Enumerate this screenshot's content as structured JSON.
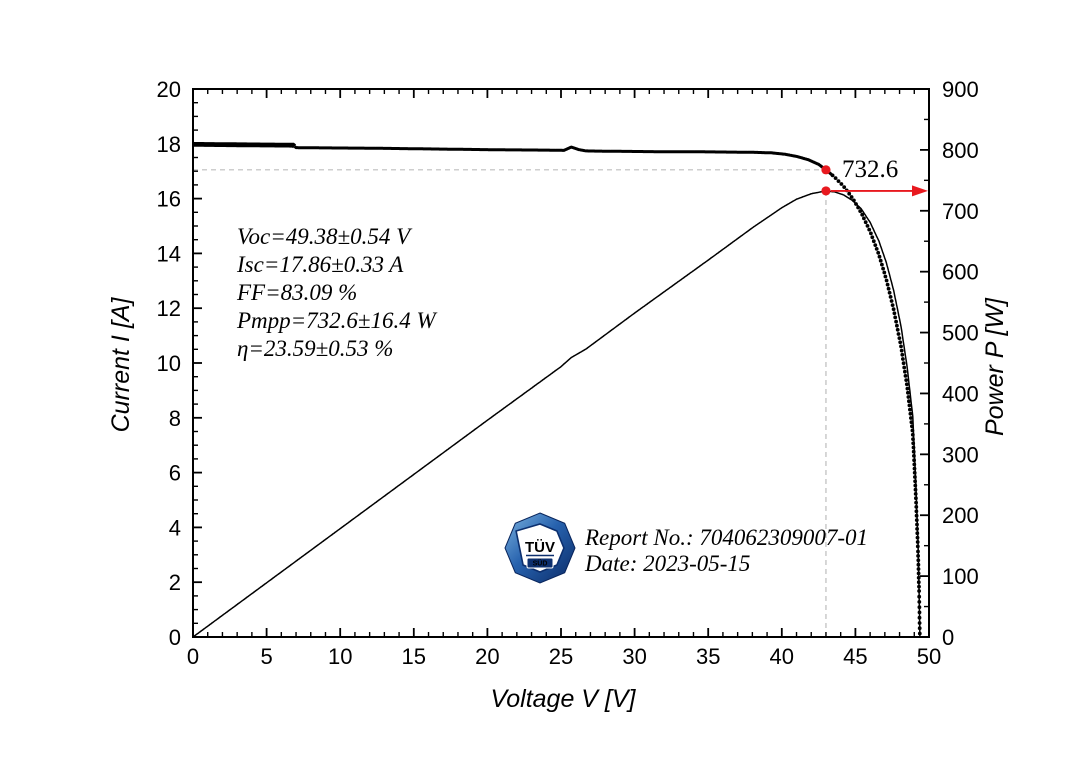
{
  "figure": {
    "background": "#ffffff",
    "axis_color": "#000000",
    "curve_color": "#000000",
    "guide_color": "#bdbdbd",
    "accent_red": "#e8191f"
  },
  "chart_data": {
    "type": "line",
    "title": "",
    "xlabel": "Voltage V [V]",
    "ylabel_left": "Current I [A]",
    "ylabel_right": "Power P [W]",
    "xlim": [
      0,
      50
    ],
    "ylim_left": [
      0,
      20
    ],
    "ylim_right": [
      0,
      900
    ],
    "x_ticks": [
      0,
      5,
      10,
      15,
      20,
      25,
      30,
      35,
      40,
      45,
      50
    ],
    "x_minor_step": 1,
    "y_left_ticks": [
      0,
      2,
      4,
      6,
      8,
      10,
      12,
      14,
      16,
      18,
      20
    ],
    "y_left_minor_step": 0.5,
    "y_right_ticks": [
      0,
      100,
      200,
      300,
      400,
      500,
      600,
      700,
      800,
      900
    ],
    "y_right_minor_step": 50,
    "grid": false,
    "legend_position": "none",
    "series": [
      {
        "name": "I-V curve",
        "axis": "left",
        "style": "thick-measured-dots",
        "points": [
          [
            0,
            17.98
          ],
          [
            2,
            17.97
          ],
          [
            4,
            17.96
          ],
          [
            6.8,
            17.95
          ],
          [
            7.0,
            17.86
          ],
          [
            9,
            17.85
          ],
          [
            12,
            17.84
          ],
          [
            15,
            17.82
          ],
          [
            18,
            17.8
          ],
          [
            21,
            17.78
          ],
          [
            24,
            17.77
          ],
          [
            25.2,
            17.76
          ],
          [
            25.7,
            17.88
          ],
          [
            26.2,
            17.79
          ],
          [
            26.7,
            17.74
          ],
          [
            28,
            17.73
          ],
          [
            30,
            17.72
          ],
          [
            32,
            17.71
          ],
          [
            34,
            17.71
          ],
          [
            36,
            17.7
          ],
          [
            38,
            17.69
          ],
          [
            39.3,
            17.67
          ],
          [
            40.2,
            17.62
          ],
          [
            41,
            17.54
          ],
          [
            41.8,
            17.42
          ],
          [
            42.5,
            17.25
          ],
          [
            43,
            17.05
          ],
          [
            43.6,
            16.78
          ],
          [
            44.2,
            16.45
          ],
          [
            44.8,
            16.02
          ],
          [
            45.4,
            15.48
          ],
          [
            46,
            14.8
          ],
          [
            46.6,
            13.95
          ],
          [
            47.1,
            13.05
          ],
          [
            47.6,
            11.95
          ],
          [
            48.1,
            10.6
          ],
          [
            48.5,
            9.2
          ],
          [
            48.9,
            7.4
          ],
          [
            49.1,
            5.2
          ],
          [
            49.25,
            3.2
          ],
          [
            49.33,
            1.6
          ],
          [
            49.38,
            0
          ]
        ]
      },
      {
        "name": "P-V power curve",
        "axis": "right",
        "style": "thin-line",
        "points": [
          [
            0,
            0
          ],
          [
            5,
            89
          ],
          [
            10,
            178
          ],
          [
            15,
            267
          ],
          [
            20,
            356
          ],
          [
            25,
            444
          ],
          [
            25.7,
            459
          ],
          [
            26.7,
            473
          ],
          [
            30,
            532
          ],
          [
            35,
            619
          ],
          [
            38,
            672
          ],
          [
            40,
            705
          ],
          [
            41,
            719
          ],
          [
            42,
            728
          ],
          [
            43,
            732.6
          ],
          [
            43.6,
            731
          ],
          [
            44.2,
            726
          ],
          [
            44.8,
            717
          ],
          [
            45.4,
            703
          ],
          [
            46,
            681
          ],
          [
            46.6,
            650
          ],
          [
            47.1,
            615
          ],
          [
            47.6,
            569
          ],
          [
            48.1,
            510
          ],
          [
            48.5,
            446
          ],
          [
            48.9,
            362
          ],
          [
            49.1,
            255
          ],
          [
            49.25,
            158
          ],
          [
            49.33,
            79
          ],
          [
            49.38,
            0
          ]
        ]
      }
    ],
    "mpp": {
      "vmpp": 43.0,
      "impp": 17.05,
      "pmpp": 732.6,
      "label": "732.6"
    }
  },
  "annotations": {
    "results": [
      "Voc=49.38±0.54 V",
      "Isc=17.86±0.33 A",
      "FF=83.09 %",
      "Pmpp=732.6±16.4 W",
      "η=23.59±0.53 %"
    ],
    "report": {
      "line1": "Report No.: 704062309007-01",
      "line2": "Date: 2023-05-15"
    },
    "mpp_label": "732.6"
  },
  "logo": {
    "name": "TÜV SÜD certification mark",
    "text_top": "TÜV",
    "text_bottom": "SÜD",
    "outer_color_light": "#5d9bd4",
    "outer_color_dark": "#0a2a66",
    "inner_color": "#ffffff",
    "text_color": "#0c2f6e"
  }
}
